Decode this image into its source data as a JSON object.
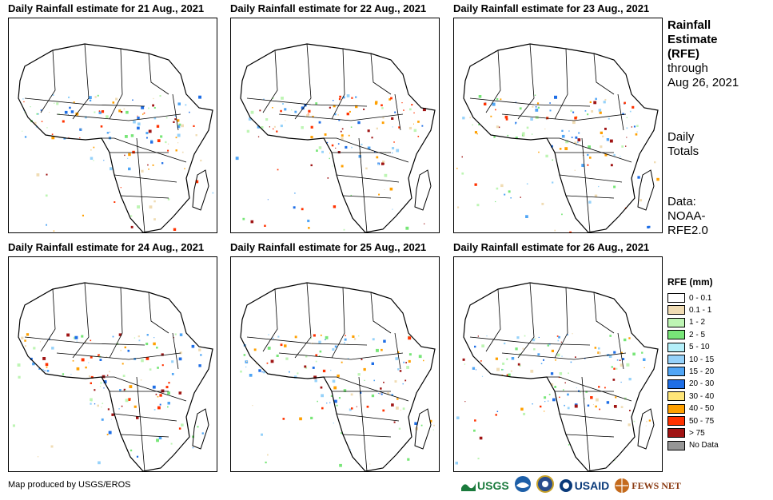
{
  "panels": [
    {
      "title": "Daily Rainfall estimate for 21 Aug., 2021"
    },
    {
      "title": "Daily Rainfall estimate for 22 Aug., 2021"
    },
    {
      "title": "Daily Rainfall estimate for 23 Aug., 2021"
    },
    {
      "title": "Daily Rainfall estimate for 24 Aug., 2021"
    },
    {
      "title": "Daily Rainfall estimate for 25 Aug., 2021"
    },
    {
      "title": "Daily Rainfall estimate for 26 Aug., 2021"
    }
  ],
  "side": {
    "line1": "Rainfall",
    "line2": "Estimate",
    "line3": "(RFE)",
    "line4": "through",
    "line5": "Aug 26, 2021",
    "line6": "Daily",
    "line7": "Totals",
    "line8": "Data:",
    "line9": "NOAA-",
    "line10": "RFE2.0"
  },
  "legend": {
    "title": "RFE (mm)",
    "items": [
      {
        "label": "0 - 0.1",
        "color": "#ffffff"
      },
      {
        "label": "0.1 - 1",
        "color": "#f0dcb4"
      },
      {
        "label": "1 - 2",
        "color": "#bef5b4"
      },
      {
        "label": "2 - 5",
        "color": "#78e678"
      },
      {
        "label": "5 - 10",
        "color": "#b4f0fa"
      },
      {
        "label": "10 - 15",
        "color": "#96d2fa"
      },
      {
        "label": "15 - 20",
        "color": "#50a5f5"
      },
      {
        "label": "20 - 30",
        "color": "#1e6ee6"
      },
      {
        "label": "30 - 40",
        "color": "#ffe678"
      },
      {
        "label": "40 - 50",
        "color": "#ffa000"
      },
      {
        "label": "50 - 75",
        "color": "#ff3200"
      },
      {
        "label": "> 75",
        "color": "#a01414"
      },
      {
        "label": "No Data",
        "color": "#969696"
      }
    ]
  },
  "footer": {
    "credit": "Map produced by USGS/EROS",
    "logo_usgs": "USGS",
    "logo_usaid": "USAID",
    "logo_fewsnet": "FEWS NET"
  }
}
